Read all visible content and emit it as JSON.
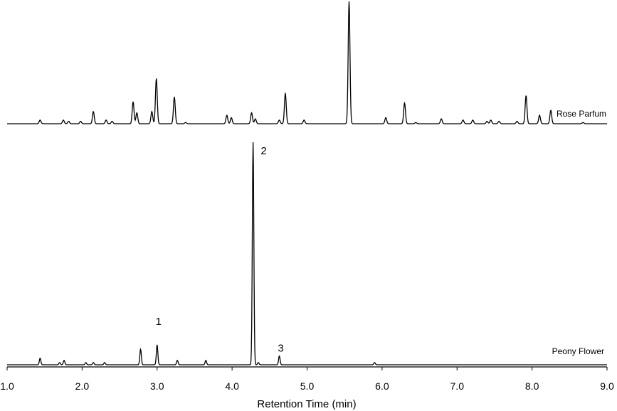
{
  "chart_data": {
    "type": "line",
    "xlabel": "Retention Time (min)",
    "xlim": [
      1.0,
      9.0
    ],
    "xticks": [
      "1.0",
      "2.0",
      "3.0",
      "4.0",
      "5.0",
      "6.0",
      "7.0",
      "8.0",
      "9.0"
    ],
    "series": [
      {
        "name": "Rose Parfum",
        "baseline": 0,
        "peaks": [
          {
            "x": 1.44,
            "y": 3
          },
          {
            "x": 1.75,
            "y": 3
          },
          {
            "x": 1.82,
            "y": 2
          },
          {
            "x": 1.98,
            "y": 2
          },
          {
            "x": 2.15,
            "y": 10
          },
          {
            "x": 2.32,
            "y": 3
          },
          {
            "x": 2.4,
            "y": 2
          },
          {
            "x": 2.68,
            "y": 18
          },
          {
            "x": 2.73,
            "y": 9
          },
          {
            "x": 2.93,
            "y": 10
          },
          {
            "x": 2.99,
            "y": 37
          },
          {
            "x": 3.23,
            "y": 22
          },
          {
            "x": 3.38,
            "y": 1
          },
          {
            "x": 3.93,
            "y": 7
          },
          {
            "x": 3.99,
            "y": 5
          },
          {
            "x": 4.26,
            "y": 9
          },
          {
            "x": 4.31,
            "y": 4
          },
          {
            "x": 4.63,
            "y": 3
          },
          {
            "x": 4.71,
            "y": 25
          },
          {
            "x": 4.96,
            "y": 3
          },
          {
            "x": 5.56,
            "y": 100
          },
          {
            "x": 6.05,
            "y": 5
          },
          {
            "x": 6.3,
            "y": 17
          },
          {
            "x": 6.45,
            "y": 1
          },
          {
            "x": 6.79,
            "y": 4
          },
          {
            "x": 7.08,
            "y": 3
          },
          {
            "x": 7.21,
            "y": 3
          },
          {
            "x": 7.4,
            "y": 2
          },
          {
            "x": 7.45,
            "y": 3
          },
          {
            "x": 7.56,
            "y": 2
          },
          {
            "x": 7.8,
            "y": 2
          },
          {
            "x": 7.92,
            "y": 23
          },
          {
            "x": 8.1,
            "y": 7
          },
          {
            "x": 8.25,
            "y": 11
          },
          {
            "x": 8.68,
            "y": 1
          }
        ]
      },
      {
        "name": "Peony Flower",
        "baseline": 0,
        "peaks": [
          {
            "x": 1.44,
            "y": 3
          },
          {
            "x": 1.7,
            "y": 1
          },
          {
            "x": 1.76,
            "y": 2
          },
          {
            "x": 2.05,
            "y": 1
          },
          {
            "x": 2.15,
            "y": 1
          },
          {
            "x": 2.3,
            "y": 1
          },
          {
            "x": 2.78,
            "y": 7
          },
          {
            "x": 3.0,
            "y": 9
          },
          {
            "x": 3.27,
            "y": 2
          },
          {
            "x": 3.65,
            "y": 2
          },
          {
            "x": 4.28,
            "y": 100
          },
          {
            "x": 4.35,
            "y": 1
          },
          {
            "x": 4.63,
            "y": 4
          },
          {
            "x": 5.9,
            "y": 1
          }
        ]
      }
    ],
    "annotations": [
      {
        "text": "1",
        "x": 3.0,
        "series": "Peony Flower"
      },
      {
        "text": "2",
        "x": 4.28,
        "series": "Peony Flower"
      },
      {
        "text": "3",
        "x": 4.63,
        "series": "Peony Flower"
      }
    ]
  }
}
